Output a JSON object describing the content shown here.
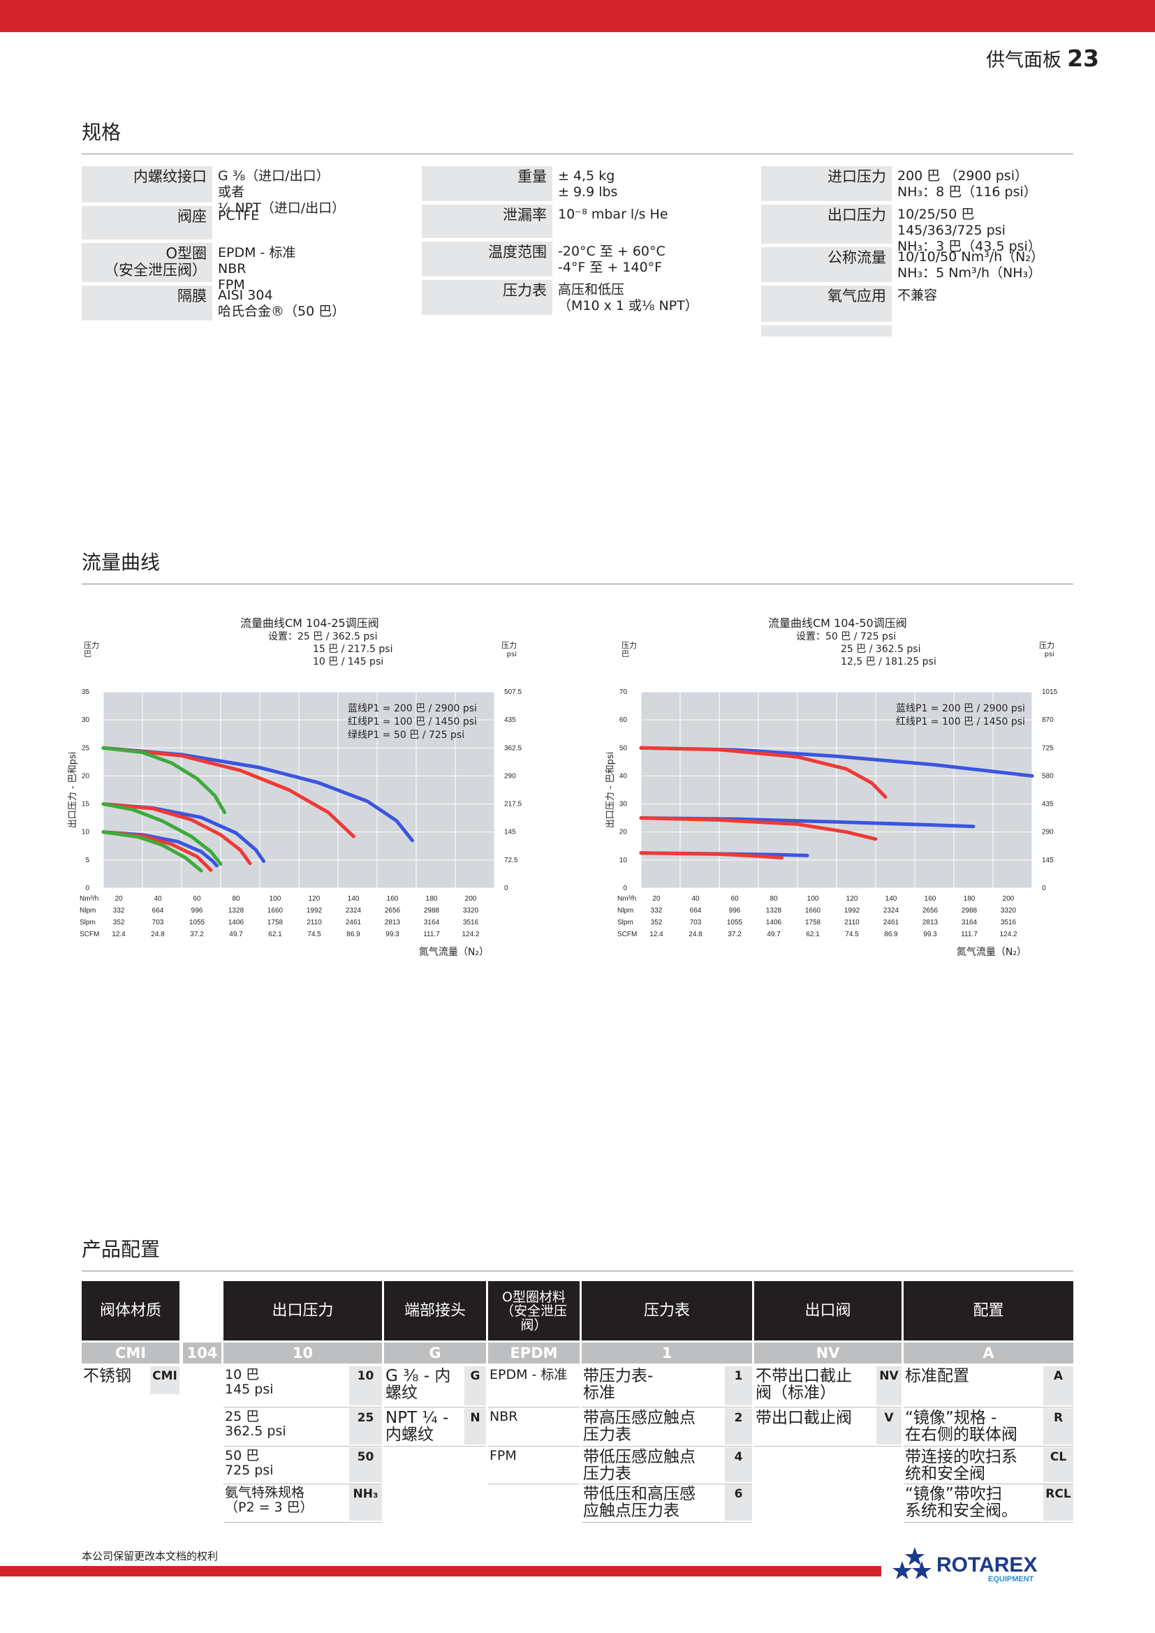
{
  "header": {
    "title": "供气面板",
    "page": "23"
  },
  "sections": {
    "specs": "规格",
    "flow": "流量曲线",
    "config": "产品配置"
  },
  "specs": {
    "col1": [
      {
        "label": [
          "内螺纹接口"
        ],
        "value": [
          "G ⅜（进口/出口）",
          "或者",
          "¼ NPT（进口/出口）"
        ]
      },
      {
        "label": [
          "阀座"
        ],
        "value": [
          "PCTFE"
        ]
      },
      {
        "label": [
          "O型圈",
          "（安全泄压阀）"
        ],
        "value": [
          "EPDM - 标准",
          "NBR",
          "FPM"
        ]
      },
      {
        "label": [
          "隔膜"
        ],
        "value": [
          "AISI 304",
          "哈氏合金®（50 巴）"
        ]
      }
    ],
    "col2": [
      {
        "label": [
          "重量"
        ],
        "value": [
          "± 4,5 kg",
          "± 9.9 lbs"
        ]
      },
      {
        "label": [
          "泄漏率"
        ],
        "value": [
          "10⁻⁸ mbar l/s He"
        ]
      },
      {
        "label": [
          "温度范围"
        ],
        "value": [
          "-20°C 至 + 60°C",
          "-4°F 至 + 140°F"
        ]
      },
      {
        "label": [
          "压力表"
        ],
        "value": [
          "高压和低压",
          "（M10 x 1 或⅛ NPT）"
        ]
      }
    ],
    "col3": [
      {
        "label": [
          "进口压力"
        ],
        "value": [
          "200 巴 （2900 psi）",
          "NH₃：8 巴（116 psi）"
        ]
      },
      {
        "label": [
          "出口压力"
        ],
        "value": [
          "10/25/50 巴",
          "145/363/725 psi",
          "NH₃：3 巴（43.5 psi）"
        ]
      },
      {
        "label": [
          "公称流量"
        ],
        "value": [
          "10/10/50 Nm³/h（N₂）",
          "NH₃：5 Nm³/h（NH₃）"
        ]
      },
      {
        "label": [
          "氧气应用"
        ],
        "value": [
          "不兼容"
        ]
      }
    ]
  },
  "chart_data": [
    {
      "type": "line",
      "title": [
        "流量曲线CM 104-25调压阀",
        "设置：25 巴 / 362.5 psi",
        "15 巴 / 217.5 psi",
        "10 巴 / 145 psi"
      ],
      "ylabel_left_top": "压力 巴",
      "ylabel_right_top": "压力 psi",
      "ylabel": "出口压力 - 巴和psi",
      "xlabel": "氮气流量（N₂）",
      "ylim": [
        0,
        35
      ],
      "xlim": [
        0,
        200
      ],
      "yticks_left": [
        "0",
        "5",
        "10",
        "15",
        "20",
        "25",
        "30",
        "35"
      ],
      "yticks_right": [
        "0",
        "72.5",
        "145",
        "217.5",
        "290",
        "362.5",
        "435",
        "507.5"
      ],
      "xrows": [
        {
          "unit": "Nm³/h",
          "ticks": [
            "20",
            "40",
            "60",
            "80",
            "100",
            "120",
            "140",
            "160",
            "180",
            "200"
          ]
        },
        {
          "unit": "Nlpm",
          "ticks": [
            "332",
            "664",
            "996",
            "1328",
            "1660",
            "1992",
            "2324",
            "2656",
            "2988",
            "3320"
          ]
        },
        {
          "unit": "Slpm",
          "ticks": [
            "352",
            "703",
            "1055",
            "1406",
            "1758",
            "2110",
            "2461",
            "2813",
            "3164",
            "3516"
          ]
        },
        {
          "unit": "SCFM",
          "ticks": [
            "12.4",
            "24.8",
            "37.2",
            "49.7",
            "62.1",
            "74.5",
            "86.9",
            "99.3",
            "111.7",
            "124.2"
          ]
        }
      ],
      "legend": [
        "蓝线P1 = 200 巴 / 2900 psi",
        "红线P1 = 100 巴 / 1450 psi",
        "绿线P1 = 50 巴 / 725 psi"
      ],
      "series": [
        {
          "name": "蓝线P1 = 200 巴 / 2900 psi",
          "color": "#3a55e0",
          "x": [
            0,
            40,
            80,
            110,
            135,
            150,
            158
          ],
          "y": [
            25,
            23.8,
            21.5,
            18.8,
            15.5,
            12,
            8.5
          ]
        },
        {
          "name": "红线P1 = 100 巴 / 1450 psi",
          "color": "#ee3a36",
          "x": [
            0,
            40,
            70,
            95,
            115,
            128
          ],
          "y": [
            25,
            23.6,
            21,
            17.5,
            13.5,
            9.2
          ]
        },
        {
          "name": "绿线P1 = 50 巴 / 725 psi",
          "color": "#3daa3a",
          "x": [
            0,
            20,
            35,
            48,
            57,
            62
          ],
          "y": [
            25,
            24.2,
            22.3,
            19.5,
            16.5,
            13.5
          ]
        },
        {
          "name": "蓝线P1 = 200 巴 / 2900 psi",
          "color": "#3a55e0",
          "x": [
            0,
            25,
            50,
            68,
            78,
            82
          ],
          "y": [
            15,
            14.3,
            12.6,
            9.8,
            6.8,
            4.8
          ]
        },
        {
          "name": "红线P1 = 100 巴 / 1450 psi",
          "color": "#ee3a36",
          "x": [
            0,
            25,
            45,
            60,
            70,
            75
          ],
          "y": [
            15,
            14.2,
            12.2,
            9.5,
            6.8,
            4.4
          ]
        },
        {
          "name": "绿线P1 = 50 巴 / 725 psi",
          "color": "#3daa3a",
          "x": [
            0,
            15,
            30,
            45,
            55,
            60
          ],
          "y": [
            15,
            14,
            12,
            9.2,
            6.5,
            4.3
          ]
        },
        {
          "name": "蓝线P1 = 200 巴 / 2900 psi",
          "color": "#3a55e0",
          "x": [
            0,
            20,
            38,
            50,
            56,
            58
          ],
          "y": [
            10,
            9.5,
            8.3,
            6.5,
            4.8,
            4.0
          ]
        },
        {
          "name": "红线P1 = 100 巴 / 1450 psi",
          "color": "#ee3a36",
          "x": [
            0,
            20,
            35,
            48,
            55
          ],
          "y": [
            10,
            9.3,
            7.8,
            5.6,
            3.2
          ]
        },
        {
          "name": "绿线P1 = 50 巴 / 725 psi",
          "color": "#3daa3a",
          "x": [
            0,
            18,
            30,
            42,
            50
          ],
          "y": [
            10,
            9.1,
            7.7,
            5.4,
            3.1
          ]
        }
      ]
    },
    {
      "type": "line",
      "title": [
        "流量曲线CM 104-50调压阀",
        "设置：50 巴 / 725 psi",
        "25 巴 / 362.5 psi",
        "12,5 巴 / 181.25 psi"
      ],
      "ylabel_left_top": "压力 巴",
      "ylabel_right_top": "压力 psi",
      "ylabel": "出口压力 - 巴和psi",
      "xlabel": "氮气流量（N₂）",
      "ylim": [
        0,
        70
      ],
      "xlim": [
        0,
        200
      ],
      "yticks_left": [
        "0",
        "10",
        "20",
        "30",
        "40",
        "50",
        "60",
        "70"
      ],
      "yticks_right": [
        "0",
        "145",
        "290",
        "435",
        "580",
        "725",
        "870",
        "1015"
      ],
      "xrows": [
        {
          "unit": "Nm³/h",
          "ticks": [
            "20",
            "40",
            "60",
            "80",
            "100",
            "120",
            "140",
            "160",
            "180",
            "200"
          ]
        },
        {
          "unit": "Nlpm",
          "ticks": [
            "332",
            "664",
            "996",
            "1328",
            "1660",
            "1992",
            "2324",
            "2656",
            "2988",
            "3320"
          ]
        },
        {
          "unit": "Slpm",
          "ticks": [
            "352",
            "703",
            "1055",
            "1406",
            "1758",
            "2110",
            "2461",
            "2813",
            "3164",
            "3516"
          ]
        },
        {
          "unit": "SCFM",
          "ticks": [
            "12.4",
            "24.8",
            "37.2",
            "49.7",
            "62.1",
            "74.5",
            "86.9",
            "99.3",
            "111.7",
            "124.2"
          ]
        }
      ],
      "legend": [
        "蓝线P1 = 200 巴 / 2900 psi",
        "红线P1 = 100 巴 / 1450 psi"
      ],
      "series": [
        {
          "name": "蓝线P1 = 200 巴 / 2900 psi",
          "color": "#3a55e0",
          "x": [
            0,
            50,
            100,
            150,
            200
          ],
          "y": [
            50,
            49.3,
            47,
            44,
            40
          ]
        },
        {
          "name": "红线P1 = 100 巴 / 1450 psi",
          "color": "#ee3a36",
          "x": [
            0,
            40,
            80,
            105,
            118,
            125
          ],
          "y": [
            50,
            49.4,
            46.8,
            42.5,
            37.5,
            32.5
          ]
        },
        {
          "name": "蓝线P1 = 200 巴 / 2900 psi",
          "color": "#3a55e0",
          "x": [
            0,
            50,
            100,
            150,
            170
          ],
          "y": [
            25,
            24.6,
            23.6,
            22.5,
            22
          ]
        },
        {
          "name": "红线P1 = 100 巴 / 1450 psi",
          "color": "#ee3a36",
          "x": [
            0,
            40,
            80,
            105,
            120
          ],
          "y": [
            25,
            24.3,
            22.8,
            20,
            17.5
          ]
        },
        {
          "name": "蓝线P1 = 200 巴 / 2900 psi",
          "color": "#3a55e0",
          "x": [
            0,
            40,
            70,
            85
          ],
          "y": [
            12.5,
            12.2,
            11.9,
            11.6
          ]
        },
        {
          "name": "红线P1 = 100 巴 / 1450 psi",
          "color": "#ee3a36",
          "x": [
            0,
            40,
            60,
            72
          ],
          "y": [
            12.5,
            12.1,
            11.4,
            10.8
          ]
        }
      ]
    }
  ],
  "config": {
    "headers": [
      "阀体材质",
      "出口压力",
      "端部接头",
      "O型圈材料（安全泄压阀）",
      "压力表",
      "出口阀",
      "配置"
    ],
    "header_lines_oring": [
      "O型圈材料",
      "（安全泄压",
      "阀）"
    ],
    "codes": [
      "CMI",
      "104",
      "10",
      "G",
      "EPDM",
      "1",
      "NV",
      "A"
    ],
    "body": {
      "text": "不锈钢",
      "code": "CMI"
    },
    "outlet": [
      {
        "lines": [
          "10 巴",
          "145 psi"
        ],
        "code": "10"
      },
      {
        "lines": [
          "25 巴",
          "362.5 psi"
        ],
        "code": "25"
      },
      {
        "lines": [
          "50 巴",
          "725 psi"
        ],
        "code": "50"
      },
      {
        "lines": [
          "氨气特殊规格",
          "（P2 = 3 巴）"
        ],
        "code": "NH₃"
      }
    ],
    "ends": [
      {
        "lines": [
          "G ⅜ - 内",
          "螺纹"
        ],
        "code": "G"
      },
      {
        "lines": [
          "NPT ¼ -",
          "内螺纹"
        ],
        "code": "N"
      }
    ],
    "oring": [
      {
        "lines": [
          "EPDM - 标准"
        ]
      },
      {
        "lines": [
          "NBR"
        ]
      },
      {
        "lines": [
          "FPM"
        ]
      }
    ],
    "gauge": [
      {
        "lines": [
          "带压力表-",
          "标准"
        ],
        "code": "1"
      },
      {
        "lines": [
          "带高压感应触点",
          "压力表"
        ],
        "code": "2"
      },
      {
        "lines": [
          "带低压感应触点",
          "压力表"
        ],
        "code": "4"
      },
      {
        "lines": [
          "带低压和高压感",
          "应触点压力表"
        ],
        "code": "6"
      }
    ],
    "valve": [
      {
        "lines": [
          "不带出口截止",
          "阀（标准）"
        ],
        "code": "NV"
      },
      {
        "lines": [
          "带出口截止阀"
        ],
        "code": "V"
      }
    ],
    "configs": [
      {
        "lines": [
          "标准配置"
        ],
        "code": "A"
      },
      {
        "lines": [
          "“镜像”规格 -",
          "在右侧的联体阀"
        ],
        "code": "R"
      },
      {
        "lines": [
          "带连接的吹扫系",
          "统和安全阀"
        ],
        "code": "CL"
      },
      {
        "lines": [
          "“镜像”带吹扫",
          "系统和安全阀。"
        ],
        "code": "RCL"
      }
    ]
  },
  "footer": {
    "note": "本公司保留更改本文档的权利",
    "logo_text": "ROTAREX",
    "logo_sub": "EQUIPMENT"
  },
  "colors": {
    "brand_red": "#d2232a",
    "blue": "#3a55e0",
    "red": "#ee3a36",
    "green": "#3daa3a",
    "plot_bg": "#d4d8dc"
  }
}
